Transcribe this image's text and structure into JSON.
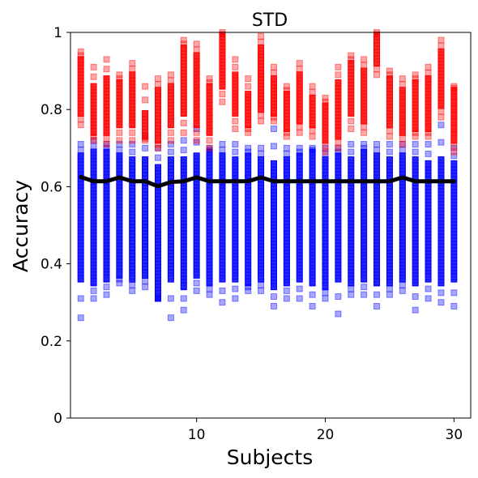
{
  "chart_data": {
    "type": "scatter",
    "title": "STD",
    "xlabel": "Subjects",
    "ylabel": "Accuracy",
    "xlim": [
      0.2,
      31.3
    ],
    "ylim": [
      0,
      1
    ],
    "x_ticks": [
      10,
      20,
      30
    ],
    "x_tick_labels": [
      "10",
      "20",
      "30"
    ],
    "y_ticks": [
      0,
      0.2,
      0.4,
      0.6,
      0.8,
      1
    ],
    "y_tick_labels": [
      "0",
      "0.2",
      "0.4",
      "0.6",
      "0.8",
      "1"
    ],
    "grid": false,
    "subjects": [
      1,
      2,
      3,
      4,
      5,
      6,
      7,
      8,
      9,
      10,
      11,
      12,
      13,
      14,
      15,
      16,
      17,
      18,
      19,
      20,
      21,
      22,
      23,
      24,
      25,
      26,
      27,
      28,
      29,
      30
    ],
    "series": [
      {
        "color": "#0000ff",
        "marker": "square",
        "min": [
          0.26,
          0.31,
          0.32,
          0.35,
          0.33,
          0.34,
          0.31,
          0.26,
          0.28,
          0.33,
          0.32,
          0.3,
          0.31,
          0.33,
          0.33,
          0.29,
          0.31,
          0.31,
          0.29,
          0.31,
          0.27,
          0.32,
          0.32,
          0.29,
          0.32,
          0.33,
          0.28,
          0.31,
          0.3,
          0.29
        ],
        "dense_min": [
          0.36,
          0.35,
          0.36,
          0.37,
          0.36,
          0.37,
          0.31,
          0.36,
          0.34,
          0.37,
          0.35,
          0.36,
          0.36,
          0.35,
          0.36,
          0.34,
          0.35,
          0.36,
          0.35,
          0.34,
          0.36,
          0.35,
          0.36,
          0.35,
          0.35,
          0.36,
          0.35,
          0.36,
          0.35,
          0.36
        ],
        "dense_max": [
          0.68,
          0.69,
          0.69,
          0.68,
          0.67,
          0.67,
          0.65,
          0.67,
          0.67,
          0.68,
          0.69,
          0.68,
          0.67,
          0.68,
          0.67,
          0.66,
          0.67,
          0.68,
          0.69,
          0.67,
          0.68,
          0.67,
          0.69,
          0.68,
          0.67,
          0.68,
          0.67,
          0.66,
          0.67,
          0.66
        ],
        "max": [
          0.71,
          0.72,
          0.71,
          0.71,
          0.71,
          0.73,
          0.7,
          0.71,
          0.72,
          0.75,
          0.7,
          0.71,
          0.71,
          0.7,
          0.7,
          0.75,
          0.7,
          0.7,
          0.7,
          0.7,
          0.7,
          0.71,
          0.71,
          0.71,
          0.71,
          0.71,
          0.71,
          0.71,
          0.76,
          0.7
        ]
      },
      {
        "color": "#ff0000",
        "marker": "square",
        "min": [
          0.76,
          0.72,
          0.71,
          0.72,
          0.72,
          0.72,
          0.7,
          0.72,
          0.74,
          0.72,
          0.7,
          0.82,
          0.75,
          0.74,
          0.77,
          0.77,
          0.73,
          0.74,
          0.73,
          0.69,
          0.7,
          0.75,
          0.74,
          0.89,
          0.73,
          0.71,
          0.73,
          0.73,
          0.78,
          0.69
        ],
        "dense_min": [
          0.79,
          0.74,
          0.74,
          0.76,
          0.76,
          0.73,
          0.72,
          0.76,
          0.79,
          0.76,
          0.74,
          0.86,
          0.79,
          0.76,
          0.8,
          0.79,
          0.75,
          0.77,
          0.76,
          0.72,
          0.73,
          0.79,
          0.77,
          0.92,
          0.76,
          0.74,
          0.75,
          0.75,
          0.81,
          0.72
        ],
        "dense_max": [
          0.93,
          0.86,
          0.88,
          0.87,
          0.89,
          0.79,
          0.85,
          0.86,
          0.96,
          0.94,
          0.86,
          0.99,
          0.89,
          0.84,
          0.96,
          0.88,
          0.84,
          0.89,
          0.83,
          0.81,
          0.87,
          0.92,
          0.9,
          0.99,
          0.88,
          0.85,
          0.87,
          0.88,
          0.95,
          0.85
        ],
        "max": [
          0.95,
          0.91,
          0.93,
          0.89,
          0.92,
          0.86,
          0.88,
          0.89,
          0.98,
          0.97,
          0.88,
          1.0,
          0.93,
          0.88,
          0.99,
          0.91,
          0.86,
          0.92,
          0.86,
          0.83,
          0.91,
          0.94,
          0.93,
          1.0,
          0.9,
          0.88,
          0.89,
          0.91,
          0.98,
          0.86
        ]
      },
      {
        "type": "line",
        "color": "#000000",
        "values": [
          0.625,
          0.614,
          0.614,
          0.624,
          0.614,
          0.614,
          0.601,
          0.612,
          0.614,
          0.624,
          0.614,
          0.614,
          0.614,
          0.614,
          0.624,
          0.614,
          0.614,
          0.614,
          0.614,
          0.614,
          0.614,
          0.614,
          0.614,
          0.614,
          0.614,
          0.624,
          0.614,
          0.614,
          0.614,
          0.614
        ]
      }
    ]
  }
}
